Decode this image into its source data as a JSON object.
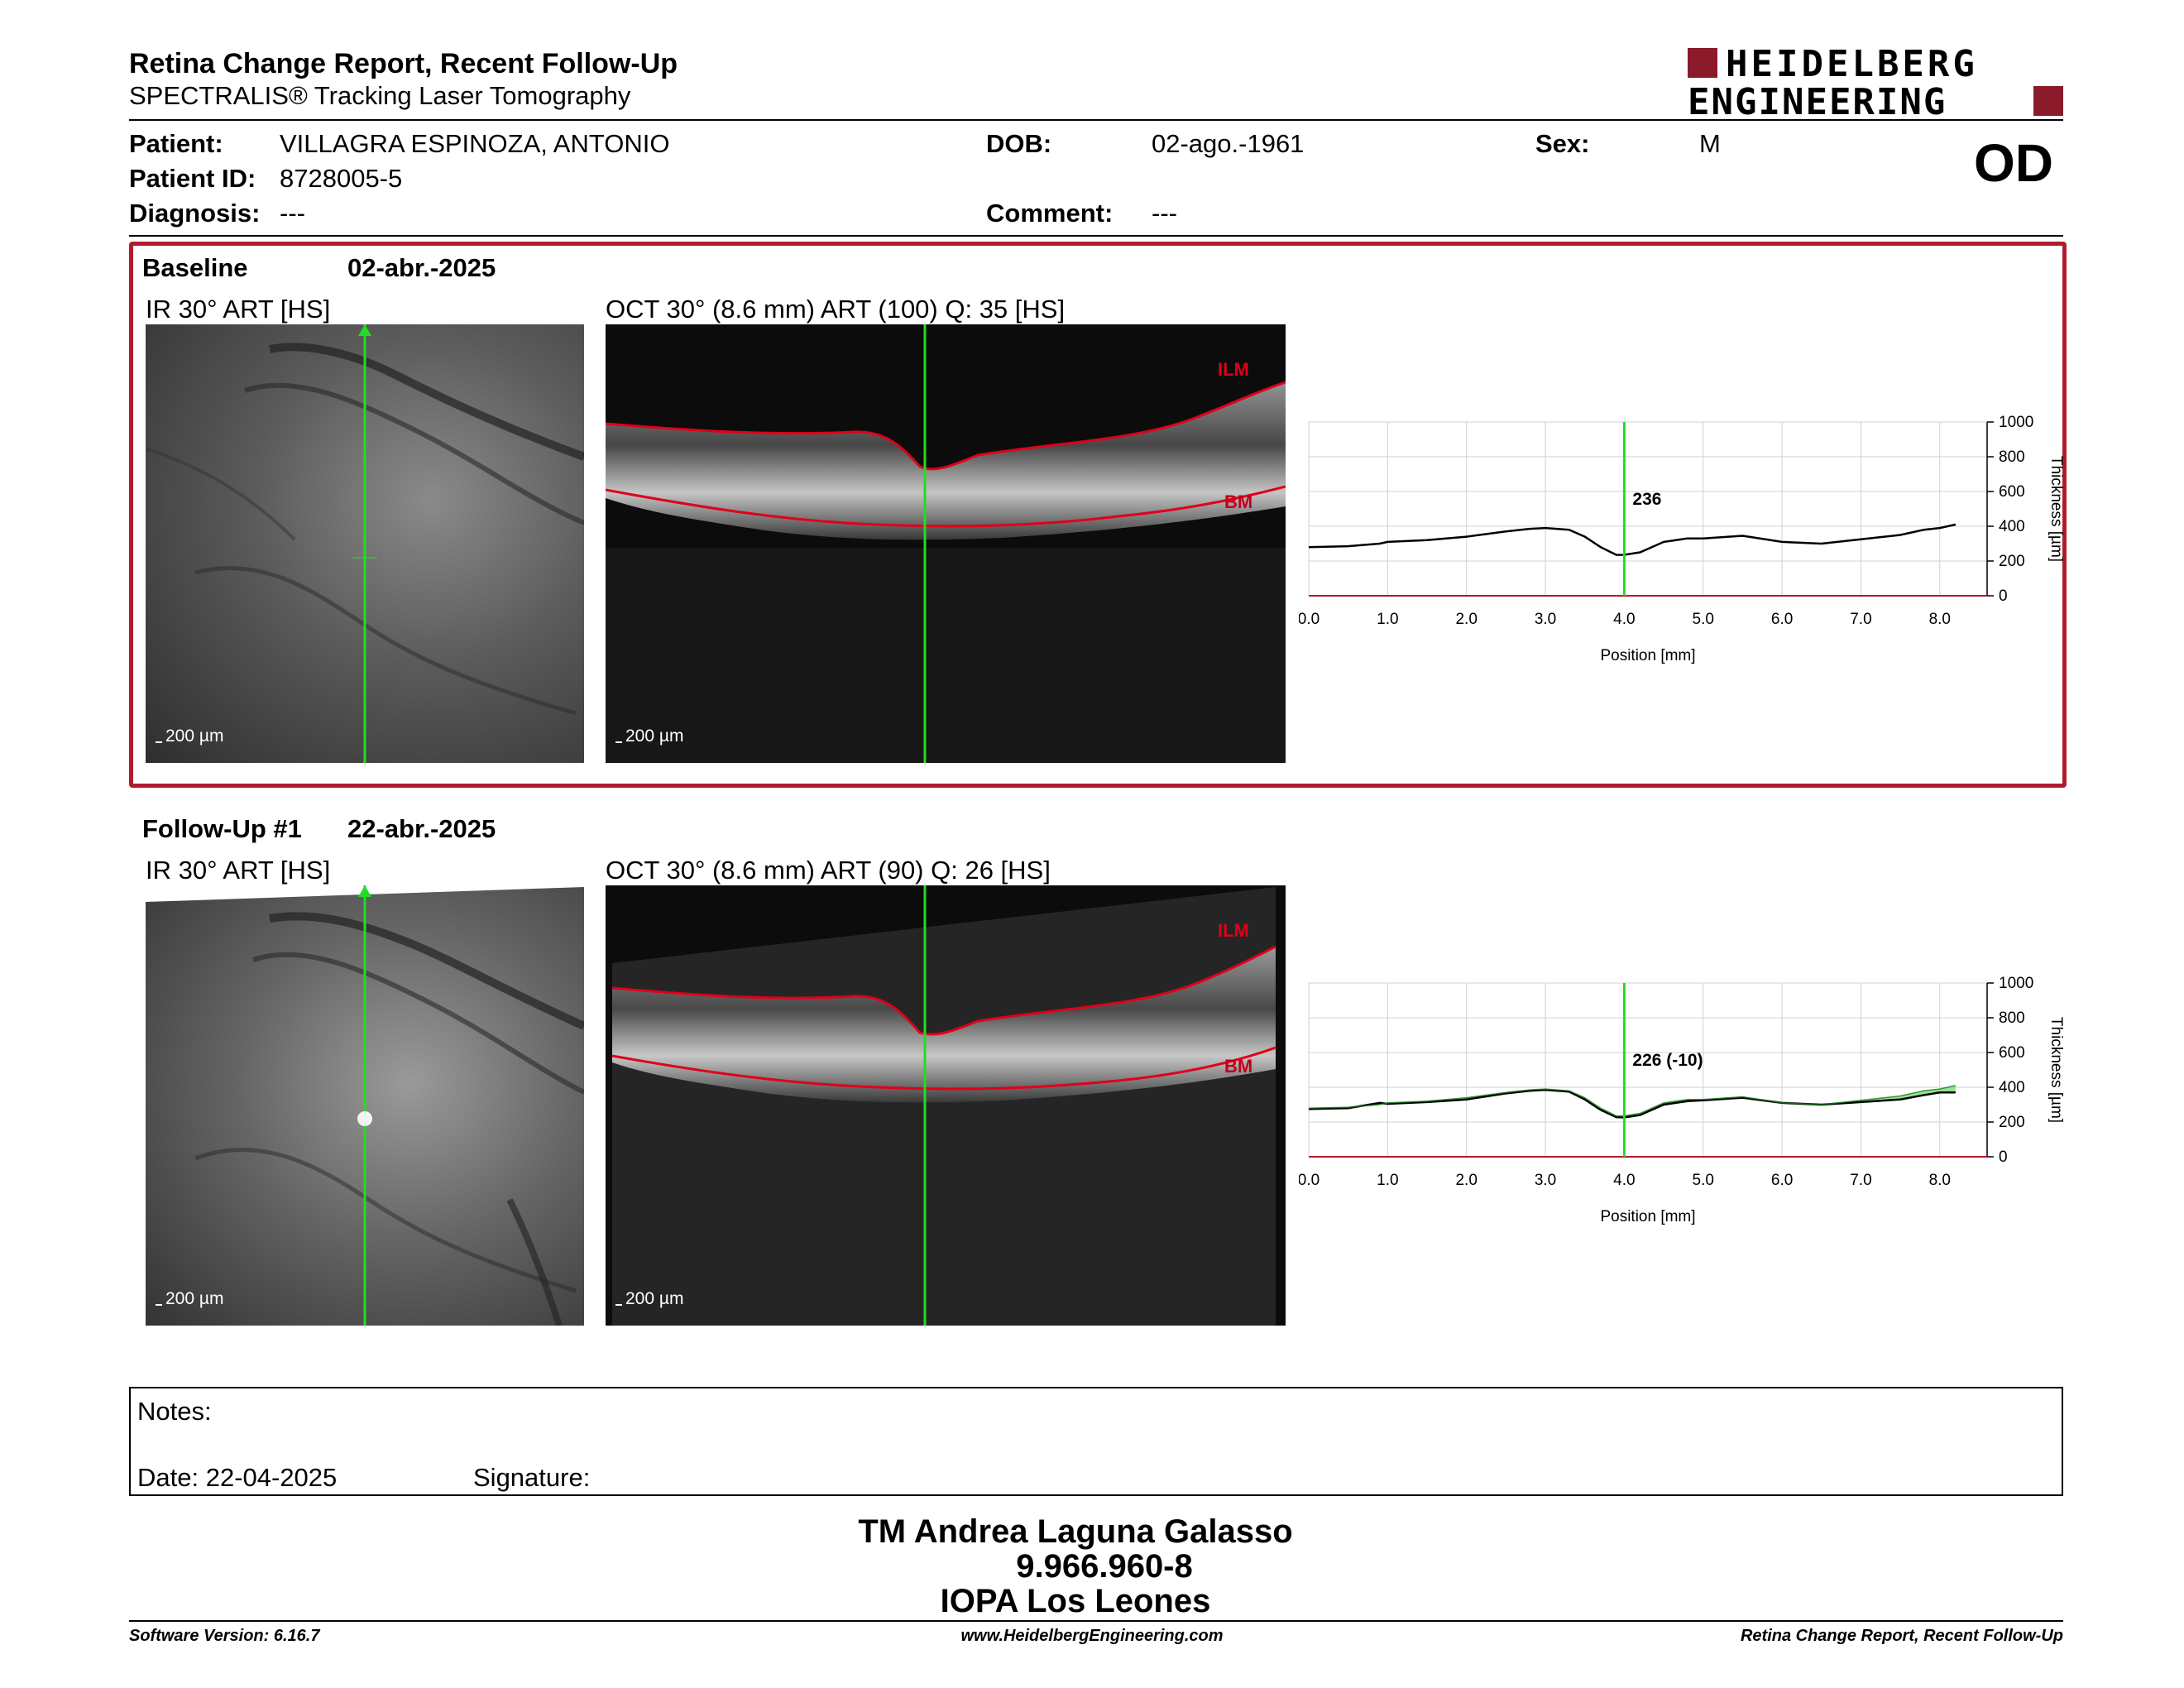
{
  "header": {
    "title": "Retina Change Report, Recent Follow-Up",
    "subtitle": "SPECTRALIS® Tracking Laser Tomography",
    "logo_line1": "HEIDELBERG",
    "logo_line2": "ENGINEERING"
  },
  "patient": {
    "patient_label": "Patient:",
    "patient_value": "VILLAGRA ESPINOZA, ANTONIO",
    "id_label": "Patient ID:",
    "id_value": "8728005-5",
    "diagnosis_label": "Diagnosis:",
    "diagnosis_value": "---",
    "dob_label": "DOB:",
    "dob_value": "02-ago.-1961",
    "comment_label": "Comment:",
    "comment_value": "---",
    "sex_label": "Sex:",
    "sex_value": "M",
    "eye": "OD"
  },
  "baseline": {
    "label": "Baseline",
    "date": "02-abr.-2025",
    "ir_label": "IR 30° ART [HS]",
    "oct_label": "OCT 30° (8.6 mm) ART (100) Q: 35 [HS]",
    "scale_ir": "200 µm",
    "scale_oct": "200 µm",
    "ilm": "ILM",
    "bm": "BM",
    "marker_value": "236"
  },
  "followup": {
    "label": "Follow-Up #1",
    "date": "22-abr.-2025",
    "ir_label": "IR 30° ART [HS]",
    "oct_label": "OCT 30° (8.6 mm) ART (90) Q: 26 [HS]",
    "scale_ir": "200 µm",
    "scale_oct": "200 µm",
    "ilm": "ILM",
    "bm": "BM",
    "marker_value": "226 (-10)"
  },
  "chart_data": [
    {
      "type": "line",
      "xlabel": "Position [mm]",
      "ylabel": "Thickness [µm]",
      "xlim": [
        0,
        8.6
      ],
      "ylim": [
        0,
        1000
      ],
      "xticks": [
        "0.0",
        "1.0",
        "2.0",
        "3.0",
        "4.0",
        "5.0",
        "6.0",
        "7.0",
        "8.0"
      ],
      "yticks": [
        "0",
        "200",
        "400",
        "600",
        "800",
        "1000"
      ],
      "marker_x": 4.0,
      "marker_label": "236",
      "series": [
        {
          "x": [
            0,
            0.5,
            0.9,
            1.0,
            1.5,
            2.0,
            2.5,
            2.8,
            3.0,
            3.3,
            3.5,
            3.7,
            3.9,
            4.0,
            4.2,
            4.5,
            4.8,
            5.0,
            5.5,
            6.0,
            6.5,
            7.0,
            7.5,
            7.8,
            8.0,
            8.2
          ],
          "values": [
            280,
            285,
            300,
            310,
            320,
            340,
            370,
            385,
            390,
            380,
            340,
            280,
            235,
            236,
            250,
            310,
            330,
            330,
            345,
            310,
            300,
            325,
            350,
            380,
            390,
            410
          ]
        }
      ]
    },
    {
      "type": "line",
      "xlabel": "Position [mm]",
      "ylabel": "Thickness [µm]",
      "xlim": [
        0,
        8.6
      ],
      "ylim": [
        0,
        1000
      ],
      "xticks": [
        "0.0",
        "1.0",
        "2.0",
        "3.0",
        "4.0",
        "5.0",
        "6.0",
        "7.0",
        "8.0"
      ],
      "yticks": [
        "0",
        "200",
        "400",
        "600",
        "800",
        "1000"
      ],
      "marker_x": 4.0,
      "marker_label": "226 (-10)",
      "series": [
        {
          "name": "",
          "x": [
            0,
            0.5,
            0.9,
            1.0,
            1.5,
            2.0,
            2.5,
            2.8,
            3.0,
            3.3,
            3.5,
            3.7,
            3.9,
            4.0,
            4.2,
            4.5,
            4.8,
            5.0,
            5.5,
            6.0,
            6.5,
            7.0,
            7.5,
            7.8,
            8.0,
            8.2
          ],
          "values": [
            275,
            280,
            310,
            305,
            315,
            330,
            365,
            380,
            385,
            375,
            330,
            270,
            228,
            226,
            240,
            300,
            320,
            325,
            340,
            310,
            300,
            315,
            330,
            355,
            370,
            370
          ]
        },
        {
          "name": "",
          "x": [
            0,
            0.5,
            0.9,
            1.0,
            1.5,
            2.0,
            2.5,
            2.8,
            3.0,
            3.3,
            3.5,
            3.7,
            3.9,
            4.0,
            4.2,
            4.5,
            4.8,
            5.0,
            5.5,
            6.0,
            6.5,
            7.0,
            7.5,
            7.8,
            8.0,
            8.2
          ],
          "values": [
            280,
            285,
            300,
            310,
            320,
            340,
            370,
            385,
            390,
            380,
            340,
            280,
            235,
            236,
            250,
            310,
            330,
            330,
            345,
            310,
            300,
            325,
            350,
            380,
            390,
            410
          ]
        }
      ]
    }
  ],
  "notes": {
    "notes_label": "Notes:",
    "date_label": "Date: 22-04-2025",
    "signature_label": "Signature:"
  },
  "signer": {
    "name": "TM Andrea Laguna Galasso",
    "id": "9.966.960-8",
    "org": "IOPA Los Leones"
  },
  "footer": {
    "version": "Software Version: 6.16.7",
    "url": "www.HeidelbergEngineering.com",
    "report": "Retina Change Report, Recent Follow-Up"
  },
  "colors": {
    "accent_red": "#b01c2e",
    "marker_green": "#22dd22",
    "increase_green": "#77dd77"
  }
}
